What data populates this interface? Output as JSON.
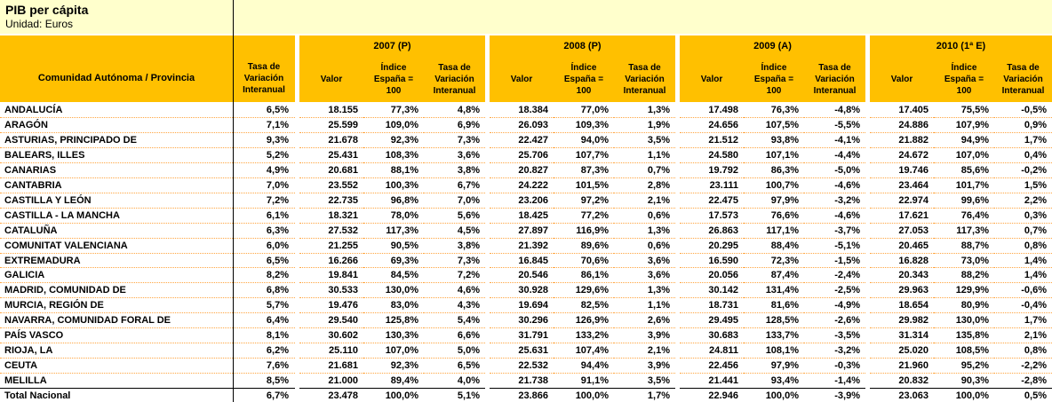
{
  "title": "PIB per cápita",
  "subtitle": "Unidad: Euros",
  "colors": {
    "header_gold": "#FFC000",
    "title_pale_yellow": "#FFFFCC",
    "row_separator_orange": "#FFA540"
  },
  "header": {
    "region_col": "Comunidad Autónoma / Provincia",
    "tasa_col": "Tasa de\nVariación\nInteranual",
    "subcols": [
      "Valor",
      "Índice\nEspaña =\n100",
      "Tasa de\nVariación\nInteranual"
    ],
    "groups": [
      "2007 (P)",
      "2008 (P)",
      "2009 (A)",
      "2010 (1ª E)"
    ]
  },
  "rows": [
    [
      "ANDALUCÍA",
      "6,5%",
      "18.155",
      "77,3%",
      "4,8%",
      "18.384",
      "77,0%",
      "1,3%",
      "17.498",
      "76,3%",
      "-4,8%",
      "17.405",
      "75,5%",
      "-0,5%"
    ],
    [
      "ARAGÓN",
      "7,1%",
      "25.599",
      "109,0%",
      "6,9%",
      "26.093",
      "109,3%",
      "1,9%",
      "24.656",
      "107,5%",
      "-5,5%",
      "24.886",
      "107,9%",
      "0,9%"
    ],
    [
      "ASTURIAS, PRINCIPADO DE",
      "9,3%",
      "21.678",
      "92,3%",
      "7,3%",
      "22.427",
      "94,0%",
      "3,5%",
      "21.512",
      "93,8%",
      "-4,1%",
      "21.882",
      "94,9%",
      "1,7%"
    ],
    [
      "BALEARS, ILLES",
      "5,2%",
      "25.431",
      "108,3%",
      "3,6%",
      "25.706",
      "107,7%",
      "1,1%",
      "24.580",
      "107,1%",
      "-4,4%",
      "24.672",
      "107,0%",
      "0,4%"
    ],
    [
      "CANARIAS",
      "4,9%",
      "20.681",
      "88,1%",
      "3,8%",
      "20.827",
      "87,3%",
      "0,7%",
      "19.792",
      "86,3%",
      "-5,0%",
      "19.746",
      "85,6%",
      "-0,2%"
    ],
    [
      "CANTABRIA",
      "7,0%",
      "23.552",
      "100,3%",
      "6,7%",
      "24.222",
      "101,5%",
      "2,8%",
      "23.111",
      "100,7%",
      "-4,6%",
      "23.464",
      "101,7%",
      "1,5%"
    ],
    [
      "CASTILLA Y LEÓN",
      "7,2%",
      "22.735",
      "96,8%",
      "7,0%",
      "23.206",
      "97,2%",
      "2,1%",
      "22.475",
      "97,9%",
      "-3,2%",
      "22.974",
      "99,6%",
      "2,2%"
    ],
    [
      "CASTILLA - LA MANCHA",
      "6,1%",
      "18.321",
      "78,0%",
      "5,6%",
      "18.425",
      "77,2%",
      "0,6%",
      "17.573",
      "76,6%",
      "-4,6%",
      "17.621",
      "76,4%",
      "0,3%"
    ],
    [
      "CATALUÑA",
      "6,3%",
      "27.532",
      "117,3%",
      "4,5%",
      "27.897",
      "116,9%",
      "1,3%",
      "26.863",
      "117,1%",
      "-3,7%",
      "27.053",
      "117,3%",
      "0,7%"
    ],
    [
      "COMUNITAT VALENCIANA",
      "6,0%",
      "21.255",
      "90,5%",
      "3,8%",
      "21.392",
      "89,6%",
      "0,6%",
      "20.295",
      "88,4%",
      "-5,1%",
      "20.465",
      "88,7%",
      "0,8%"
    ],
    [
      "EXTREMADURA",
      "6,5%",
      "16.266",
      "69,3%",
      "7,3%",
      "16.845",
      "70,6%",
      "3,6%",
      "16.590",
      "72,3%",
      "-1,5%",
      "16.828",
      "73,0%",
      "1,4%"
    ],
    [
      "GALICIA",
      "8,2%",
      "19.841",
      "84,5%",
      "7,2%",
      "20.546",
      "86,1%",
      "3,6%",
      "20.056",
      "87,4%",
      "-2,4%",
      "20.343",
      "88,2%",
      "1,4%"
    ],
    [
      "MADRID, COMUNIDAD DE",
      "6,8%",
      "30.533",
      "130,0%",
      "4,6%",
      "30.928",
      "129,6%",
      "1,3%",
      "30.142",
      "131,4%",
      "-2,5%",
      "29.963",
      "129,9%",
      "-0,6%"
    ],
    [
      "MURCIA, REGIÓN DE",
      "5,7%",
      "19.476",
      "83,0%",
      "4,3%",
      "19.694",
      "82,5%",
      "1,1%",
      "18.731",
      "81,6%",
      "-4,9%",
      "18.654",
      "80,9%",
      "-0,4%"
    ],
    [
      "NAVARRA, COMUNIDAD FORAL DE",
      "6,4%",
      "29.540",
      "125,8%",
      "5,4%",
      "30.296",
      "126,9%",
      "2,6%",
      "29.495",
      "128,5%",
      "-2,6%",
      "29.982",
      "130,0%",
      "1,7%"
    ],
    [
      "PAÍS VASCO",
      "8,1%",
      "30.602",
      "130,3%",
      "6,6%",
      "31.791",
      "133,2%",
      "3,9%",
      "30.683",
      "133,7%",
      "-3,5%",
      "31.314",
      "135,8%",
      "2,1%"
    ],
    [
      "RIOJA, LA",
      "6,2%",
      "25.110",
      "107,0%",
      "5,0%",
      "25.631",
      "107,4%",
      "2,1%",
      "24.811",
      "108,1%",
      "-3,2%",
      "25.020",
      "108,5%",
      "0,8%"
    ],
    [
      "CEUTA",
      "7,6%",
      "21.681",
      "92,3%",
      "6,5%",
      "22.532",
      "94,4%",
      "3,9%",
      "22.456",
      "97,9%",
      "-0,3%",
      "21.960",
      "95,2%",
      "-2,2%"
    ],
    [
      "MELILLA",
      "8,5%",
      "21.000",
      "89,4%",
      "4,0%",
      "21.738",
      "91,1%",
      "3,5%",
      "21.441",
      "93,4%",
      "-1,4%",
      "20.832",
      "90,3%",
      "-2,8%"
    ]
  ],
  "total_row": [
    "Total Nacional",
    "6,7%",
    "23.478",
    "100,0%",
    "5,1%",
    "23.866",
    "100,0%",
    "1,7%",
    "22.946",
    "100,0%",
    "-3,9%",
    "23.063",
    "100,0%",
    "0,5%"
  ]
}
